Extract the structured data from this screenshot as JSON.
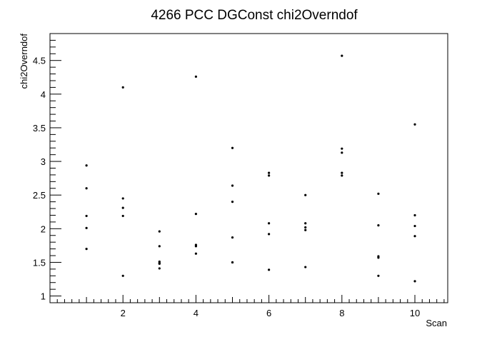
{
  "chart_data": {
    "type": "scatter",
    "title": "4266 PCC DGConst chi2Overndof",
    "xlabel": "Scan",
    "ylabel": "chi2Overndof",
    "xlim": [
      0.0,
      10.9
    ],
    "ylim": [
      0.9,
      4.9
    ],
    "x_major_ticks": [
      2,
      4,
      6,
      8,
      10
    ],
    "x_tick_labels": [
      "2",
      "4",
      "6",
      "8",
      "10"
    ],
    "y_major_ticks": [
      1,
      1.5,
      2,
      2.5,
      3,
      3.5,
      4,
      4.5
    ],
    "y_tick_labels": [
      "1",
      "1.5",
      "2",
      "2.5",
      "3",
      "3.5",
      "4",
      "4.5"
    ],
    "grid": false,
    "legend": "none",
    "marker_color": "#000000",
    "series": [
      {
        "x": [
          1,
          1,
          1,
          1,
          1,
          2,
          2,
          2,
          2,
          2,
          3,
          3,
          3,
          3,
          3,
          3,
          4,
          4,
          4,
          4,
          4,
          5,
          5,
          5,
          5,
          5,
          5,
          6,
          6,
          6,
          6,
          6,
          7,
          7,
          7,
          7,
          7,
          8,
          8,
          8,
          8,
          8,
          9,
          9,
          9,
          9,
          9,
          10,
          10,
          10,
          10,
          10
        ],
        "y": [
          2.94,
          2.6,
          2.19,
          2.01,
          1.7,
          4.1,
          2.45,
          2.31,
          2.19,
          1.3,
          1.96,
          1.74,
          1.51,
          1.48,
          1.41,
          1.49,
          4.26,
          2.22,
          1.76,
          1.74,
          1.63,
          3.2,
          2.64,
          2.4,
          1.87,
          1.5,
          1.5,
          2.83,
          2.79,
          2.08,
          1.92,
          1.39,
          2.5,
          2.08,
          2.02,
          1.98,
          1.43,
          4.57,
          3.19,
          3.13,
          2.83,
          2.79,
          2.52,
          2.05,
          1.59,
          1.57,
          1.3,
          3.55,
          2.2,
          2.04,
          1.89,
          1.22
        ]
      }
    ]
  }
}
